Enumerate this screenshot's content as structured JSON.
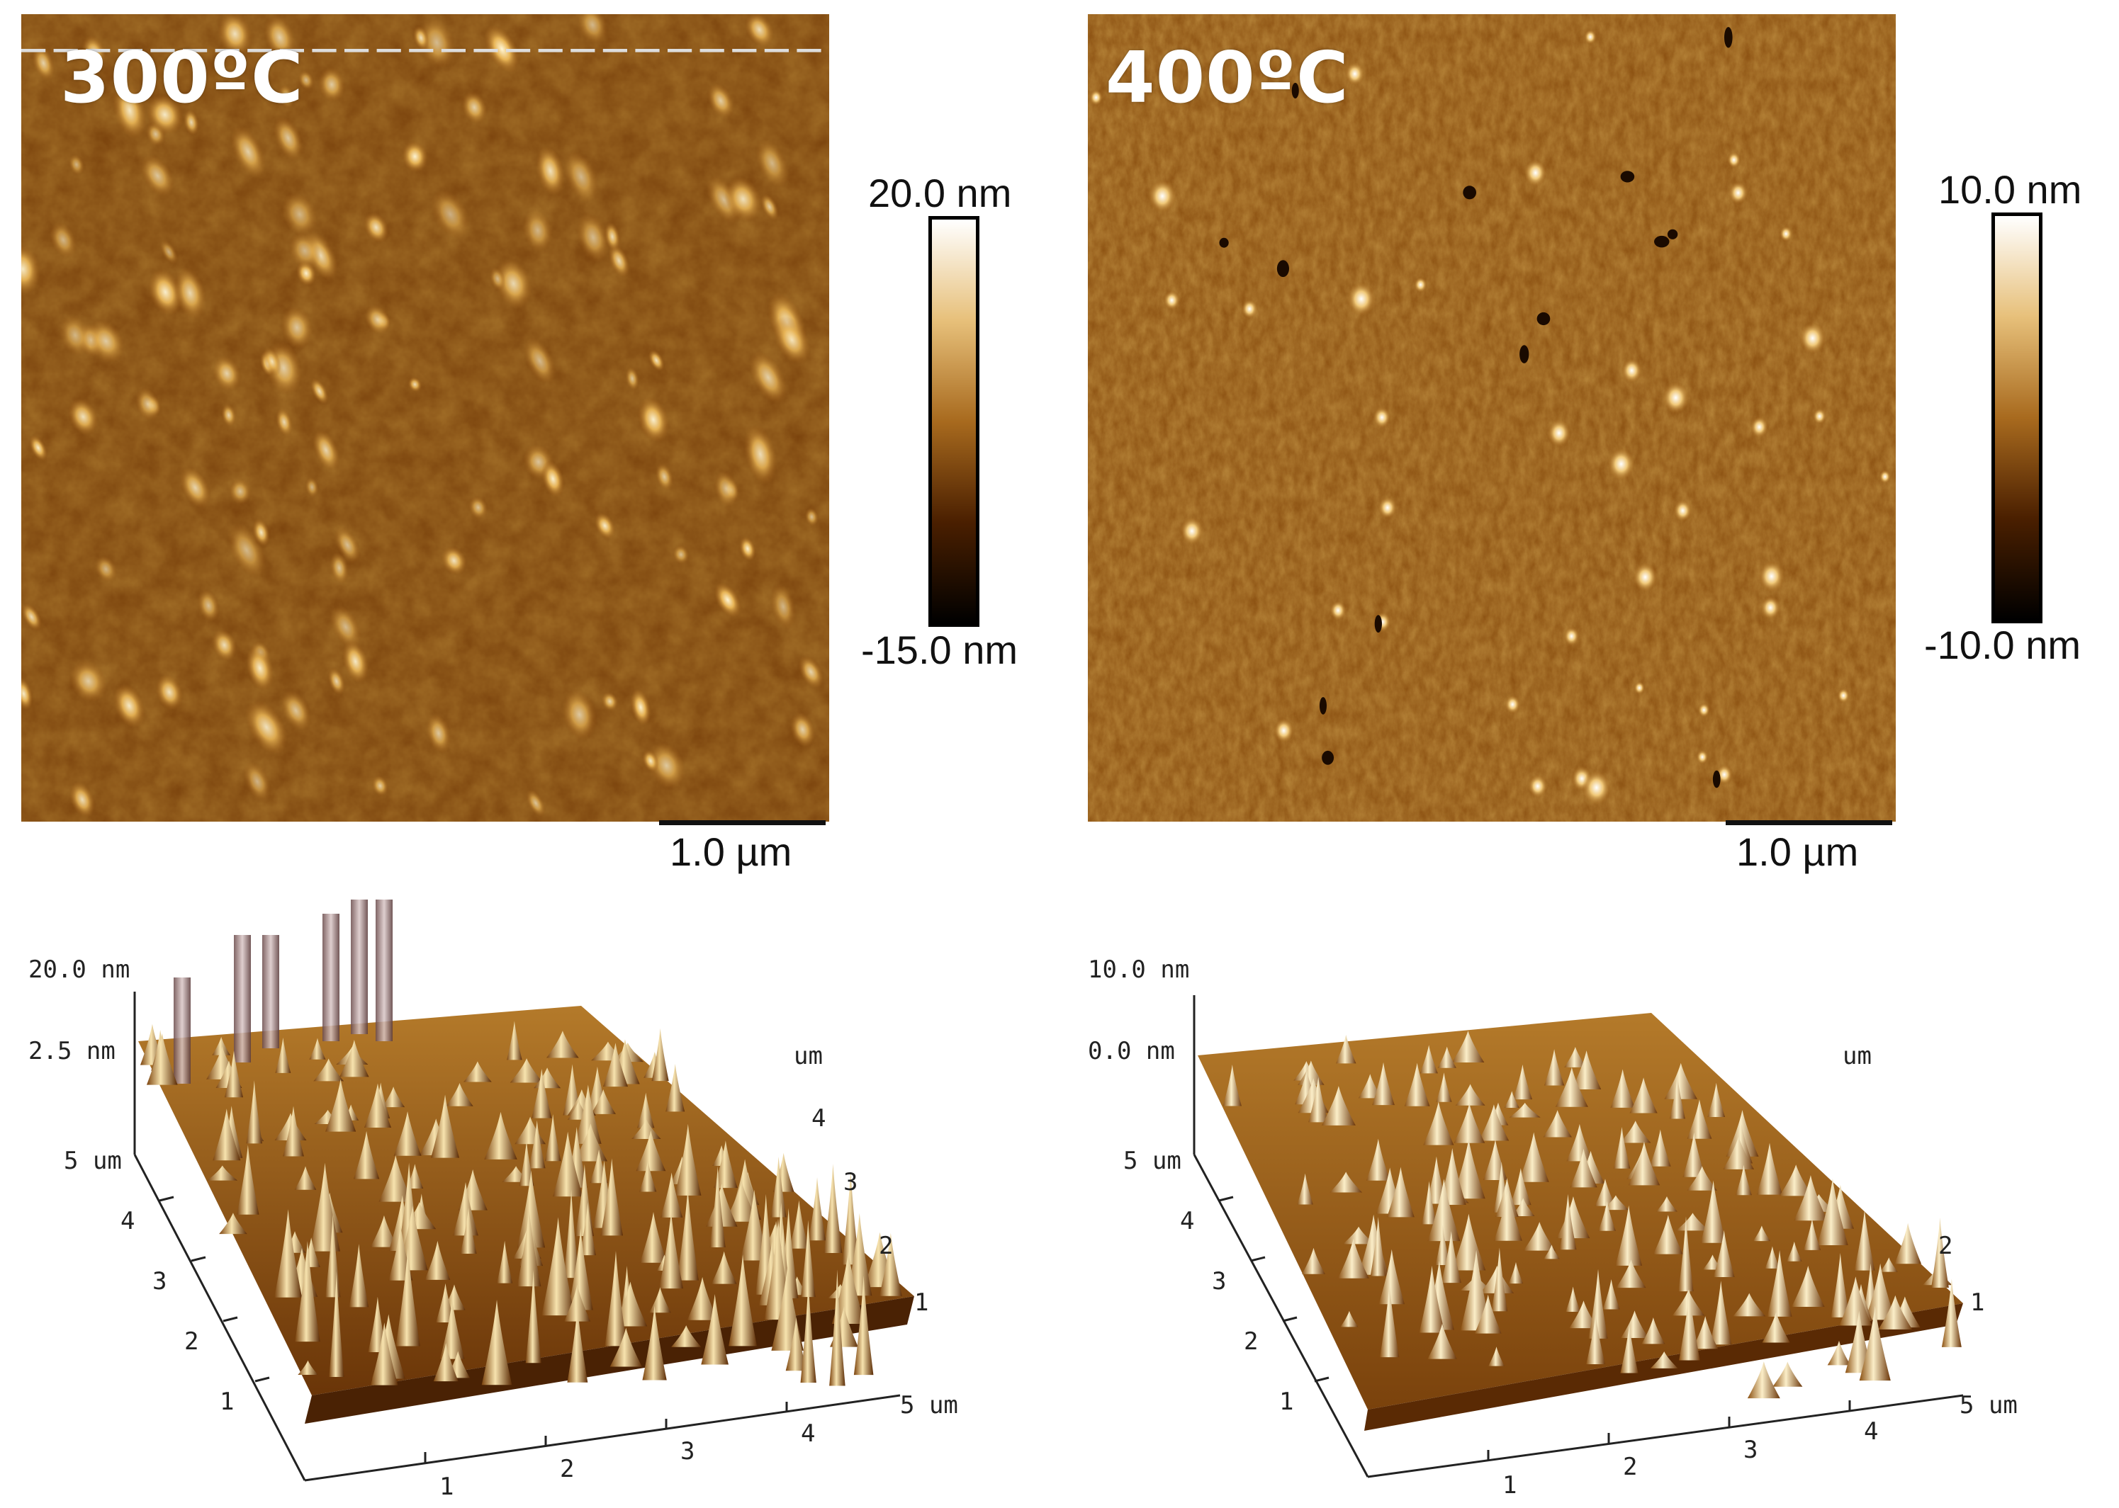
{
  "colors": {
    "afm_dark": "#1a0a00",
    "afm_mid": "#8a4f0f",
    "afm_light": "#f2d79a",
    "afm_white": "#ffffff"
  },
  "panels": {
    "left_top": {
      "temperature_label": "300ºC",
      "scale_bar_label": "1.0 µm",
      "colorbar_max": "20.0 nm",
      "colorbar_min": "-15.0 nm"
    },
    "right_top": {
      "temperature_label": "400ºC",
      "scale_bar_label": "1.0 µm",
      "colorbar_max": "10.0 nm",
      "colorbar_min": "-10.0 nm"
    },
    "left_3d": {
      "z_max": "20.0 nm",
      "z_mid": "2.5 nm",
      "y_top": "5 um",
      "y_ticks": [
        "4",
        "3",
        "2",
        "1"
      ],
      "x_ticks": [
        "1",
        "2",
        "3",
        "4"
      ],
      "x_end": "5 um",
      "right_ticks": [
        "4",
        "3",
        "2",
        "1"
      ],
      "right_unit": "um"
    },
    "right_3d": {
      "z_max": "10.0 nm",
      "z_mid": "0.0 nm",
      "y_top": "5 um",
      "y_ticks": [
        "4",
        "3",
        "2",
        "1"
      ],
      "x_ticks": [
        "1",
        "2",
        "3",
        "4"
      ],
      "x_end": "5 um",
      "right_ticks": [
        "2",
        "1"
      ],
      "right_unit": "um"
    }
  }
}
